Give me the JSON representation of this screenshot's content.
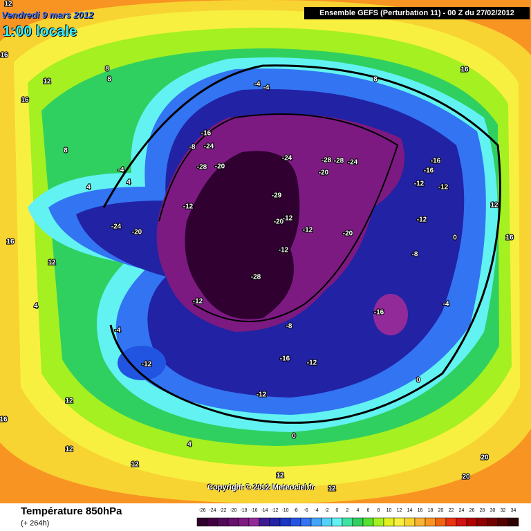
{
  "header": {
    "date": "Vendredi 9 mars 2012",
    "hour": "1:00 locale",
    "run": "Ensemble GEFS (Perturbation 11)  -  00 Z du 27/02/2012"
  },
  "footer": {
    "parameter": "Température 850hPa",
    "lead_time": "(+ 264h)",
    "copyright": "Copyright © 2012 Meteociel.fr"
  },
  "legend": {
    "ticks": [
      -26,
      -24,
      -22,
      -20,
      -18,
      -16,
      -14,
      -12,
      -10,
      -8,
      -6,
      -4,
      -2,
      0,
      2,
      4,
      6,
      8,
      10,
      12,
      14,
      16,
      18,
      20,
      22,
      24,
      26,
      28,
      30,
      32,
      34
    ],
    "colors": [
      "#300030",
      "#420042",
      "#520a58",
      "#64106c",
      "#7c1a82",
      "#922a9a",
      "#3c1a92",
      "#2222a4",
      "#1a34c4",
      "#2254e2",
      "#3274f2",
      "#42a4f8",
      "#52d2f8",
      "#62f2f2",
      "#40e2a0",
      "#30d060",
      "#56e030",
      "#a4f020",
      "#e2f020",
      "#f8f040",
      "#f8d432",
      "#f8b432",
      "#f89422",
      "#f06412",
      "#e83412",
      "#d01212",
      "#b00000",
      "#900000",
      "#720000",
      "#520000",
      "#300000"
    ]
  },
  "contour_labels": [
    12,
    16,
    16,
    12,
    8,
    8,
    8,
    -4,
    -4,
    8,
    16,
    -16,
    -24,
    -8,
    -28,
    -20,
    -24,
    -28,
    -28,
    -24,
    -20,
    -16,
    -16,
    -12,
    -12,
    -4,
    -12,
    -24,
    -20,
    -29,
    -20,
    -12,
    -12,
    -20,
    -12,
    -12,
    -8,
    -28,
    -16,
    -8,
    -12,
    4,
    4,
    -4,
    -12,
    -16,
    -12,
    -12,
    0,
    4,
    12,
    12,
    16,
    16,
    12,
    20,
    20,
    4,
    0,
    0,
    -4,
    12,
    12,
    16,
    12,
    12
  ]
}
